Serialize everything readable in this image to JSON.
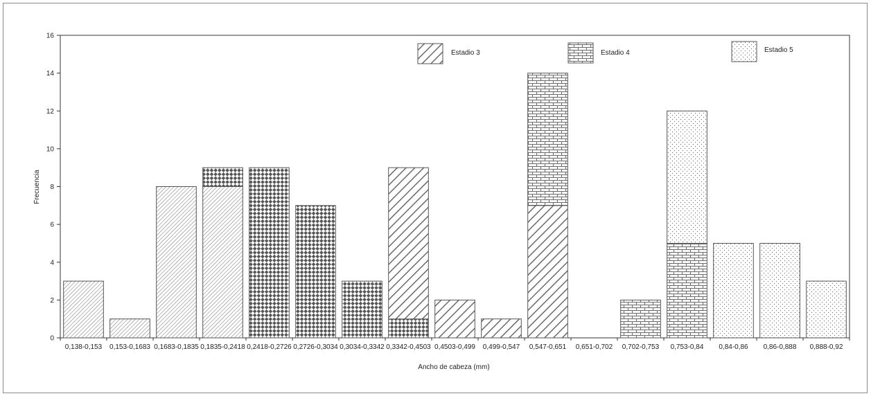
{
  "chart_data": {
    "type": "bar",
    "stacked": true,
    "xlabel": "Ancho de cabeza (mm)",
    "ylabel": "Frecuencia",
    "ylim": [
      0,
      16
    ],
    "yticks": [
      0,
      2,
      4,
      6,
      8,
      10,
      12,
      14,
      16
    ],
    "grid": false,
    "legend_position": "top",
    "categories": [
      "0,138-0,153",
      "0,153-0,1683",
      "0,1683-0,1835",
      "0,1835-0,2418",
      "0,2418-0,2726",
      "0,2726-0,3034",
      "0,3034-0,3342",
      "0,3342-0,4503",
      "0,4503-0,499",
      "0,499-0,547",
      "0,547-0,651",
      "0,651-0,702",
      "0,702-0,753",
      "0,753-0,84",
      "0,84-0,86",
      "0,86-0,888",
      "0,888-0,92"
    ],
    "series": [
      {
        "pattern": "diag-fine",
        "values": [
          3,
          1,
          8,
          8,
          0,
          0,
          0,
          0,
          0,
          0,
          0,
          0,
          0,
          0,
          0,
          0,
          0
        ]
      },
      {
        "pattern": "checker",
        "values": [
          0,
          0,
          0,
          1,
          9,
          7,
          3,
          1,
          0,
          0,
          0,
          0,
          0,
          0,
          0,
          0,
          0
        ]
      },
      {
        "name": "Estadio 3",
        "pattern": "diag-bold",
        "values": [
          0,
          0,
          0,
          0,
          0,
          0,
          0,
          8,
          2,
          1,
          7,
          0,
          0,
          0,
          0,
          0,
          0
        ]
      },
      {
        "name": "Estadio 4",
        "pattern": "brick",
        "values": [
          0,
          0,
          0,
          0,
          0,
          0,
          0,
          0,
          0,
          0,
          7,
          0,
          2,
          5,
          0,
          0,
          0
        ]
      },
      {
        "name": "Estadio 5",
        "pattern": "dots",
        "values": [
          0,
          0,
          0,
          0,
          0,
          0,
          0,
          0,
          0,
          0,
          0,
          0,
          0,
          7,
          5,
          5,
          3
        ]
      }
    ],
    "legend": [
      {
        "label": "Estadio 3",
        "pattern": "diag-bold"
      },
      {
        "label": "Estadio 4",
        "pattern": "brick"
      },
      {
        "label": "Estadio 5",
        "pattern": "dots"
      }
    ],
    "colors": {
      "stroke": "#555555",
      "pattern_ink": "#6a6a6a",
      "checker_ink": "#555555"
    }
  }
}
